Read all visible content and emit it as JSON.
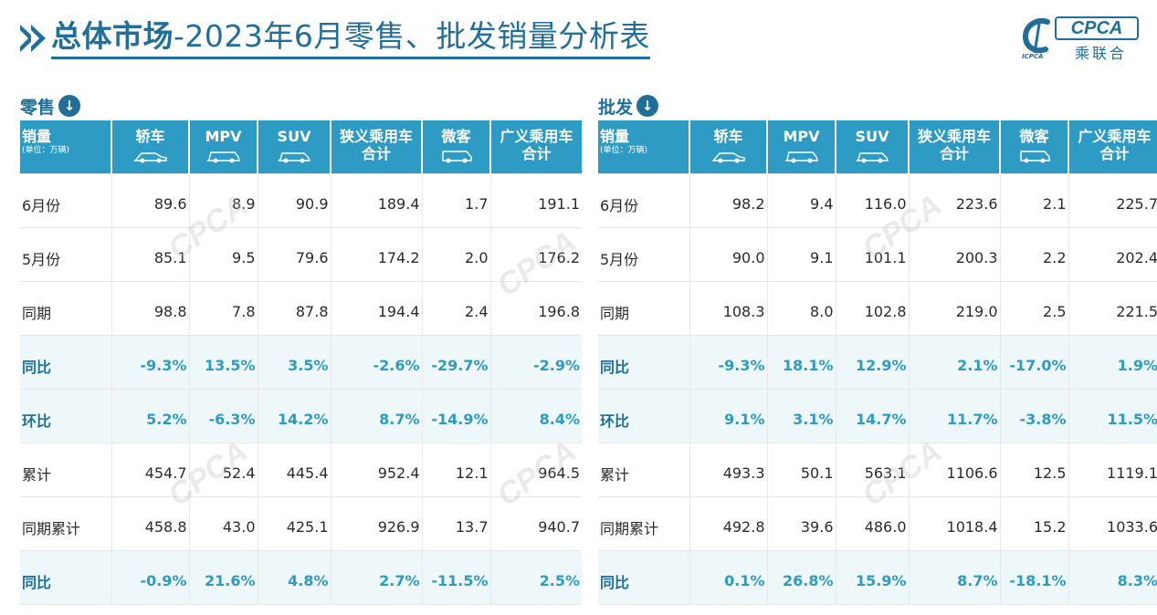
{
  "header": {
    "title_bold": "总体市场",
    "title_rest": "-2023年6月零售、批发销量分析表"
  },
  "logo": {
    "main": "CPCA",
    "sub": "乘联合",
    "small": "ICPCA",
    "watermark": "CPCA"
  },
  "columns": {
    "first": "销量",
    "unit": "(单位：万辆)",
    "headers": [
      {
        "line1": "轿车",
        "line2": "",
        "icon": "sedan-icon"
      },
      {
        "line1": "MPV",
        "line2": "",
        "icon": "mpv-icon"
      },
      {
        "line1": "SUV",
        "line2": "",
        "icon": "suv-icon"
      },
      {
        "line1": "狭义乘用车",
        "line2": "合计",
        "icon": ""
      },
      {
        "line1": "微客",
        "line2": "",
        "icon": "minivan-icon"
      },
      {
        "line1": "广义乘用车",
        "line2": "合计",
        "icon": ""
      }
    ]
  },
  "retail": {
    "title": "零售",
    "rows": [
      {
        "label": "6月份",
        "values": [
          "89.6",
          "8.9",
          "90.9",
          "189.4",
          "1.7",
          "191.1"
        ]
      },
      {
        "label": "5月份",
        "values": [
          "85.1",
          "9.5",
          "79.6",
          "174.2",
          "2.0",
          "176.2"
        ]
      },
      {
        "label": "同期",
        "values": [
          "98.8",
          "7.8",
          "87.8",
          "194.4",
          "2.4",
          "196.8"
        ]
      },
      {
        "label": "同比",
        "values": [
          "-9.3%",
          "13.5%",
          "3.5%",
          "-2.6%",
          "-29.7%",
          "-2.9%"
        ]
      },
      {
        "label": "环比",
        "values": [
          "5.2%",
          "-6.3%",
          "14.2%",
          "8.7%",
          "-14.9%",
          "8.4%"
        ]
      },
      {
        "label": "累计",
        "values": [
          "454.7",
          "52.4",
          "445.4",
          "952.4",
          "12.1",
          "964.5"
        ]
      },
      {
        "label": "同期累计",
        "values": [
          "458.8",
          "43.0",
          "425.1",
          "926.9",
          "13.7",
          "940.7"
        ]
      },
      {
        "label": "同比",
        "values": [
          "-0.9%",
          "21.6%",
          "4.8%",
          "2.7%",
          "-11.5%",
          "2.5%"
        ]
      }
    ]
  },
  "wholesale": {
    "title": "批发",
    "rows": [
      {
        "label": "6月份",
        "values": [
          "98.2",
          "9.4",
          "116.0",
          "223.6",
          "2.1",
          "225.7"
        ]
      },
      {
        "label": "5月份",
        "values": [
          "90.0",
          "9.1",
          "101.1",
          "200.3",
          "2.2",
          "202.4"
        ]
      },
      {
        "label": "同期",
        "values": [
          "108.3",
          "8.0",
          "102.8",
          "219.0",
          "2.5",
          "221.5"
        ]
      },
      {
        "label": "同比",
        "values": [
          "-9.3%",
          "18.1%",
          "12.9%",
          "2.1%",
          "-17.0%",
          "1.9%"
        ]
      },
      {
        "label": "环比",
        "values": [
          "9.1%",
          "3.1%",
          "14.7%",
          "11.7%",
          "-3.8%",
          "11.5%"
        ]
      },
      {
        "label": "累计",
        "values": [
          "493.3",
          "50.1",
          "563.1",
          "1106.6",
          "12.5",
          "1119.1"
        ]
      },
      {
        "label": "同期累计",
        "values": [
          "492.8",
          "39.6",
          "486.0",
          "1018.4",
          "15.2",
          "1033.6"
        ]
      },
      {
        "label": "同比",
        "values": [
          "0.1%",
          "26.8%",
          "15.9%",
          "8.7%",
          "-18.1%",
          "8.3%"
        ]
      }
    ]
  },
  "highlight_rows": [
    3,
    4,
    7
  ],
  "colors": {
    "accent": "#1f6f9a",
    "header_bg": "#2e9bc4",
    "highlight_bg": "#eef8fb"
  }
}
